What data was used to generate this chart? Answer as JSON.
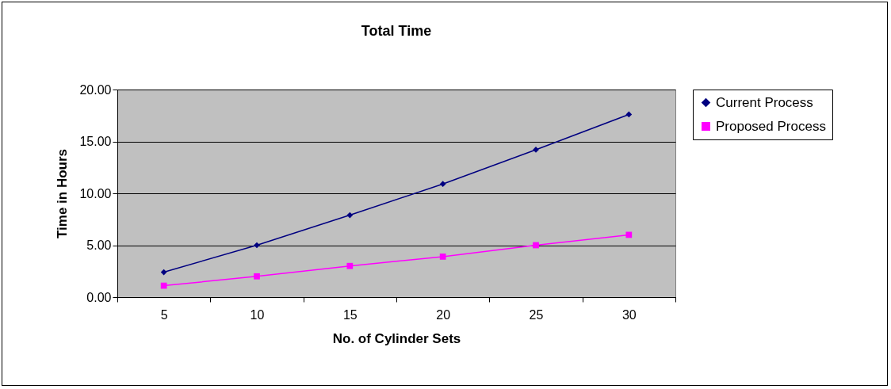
{
  "chart_data": {
    "type": "line",
    "title": "Total Time",
    "xlabel": "No. of Cylinder Sets",
    "ylabel": "Time in Hours",
    "categories": [
      "5",
      "10",
      "15",
      "20",
      "25",
      "30"
    ],
    "series": [
      {
        "name": "Current Process",
        "color": "#000080",
        "marker": "diamond",
        "values": [
          2.4,
          5.0,
          7.9,
          10.9,
          14.2,
          17.6
        ]
      },
      {
        "name": "Proposed Process",
        "color": "#ff00ff",
        "marker": "square",
        "values": [
          1.1,
          2.0,
          3.0,
          3.9,
          5.0,
          6.0
        ]
      }
    ],
    "ylim": [
      0,
      20
    ],
    "yticks": [
      {
        "value": 0,
        "label": "0.00"
      },
      {
        "value": 5,
        "label": "5.00"
      },
      {
        "value": 10,
        "label": "10.00"
      },
      {
        "value": 15,
        "label": "15.00"
      },
      {
        "value": 20,
        "label": "20.00"
      }
    ],
    "grid": "y",
    "legend": "right",
    "line_style": "solid"
  }
}
